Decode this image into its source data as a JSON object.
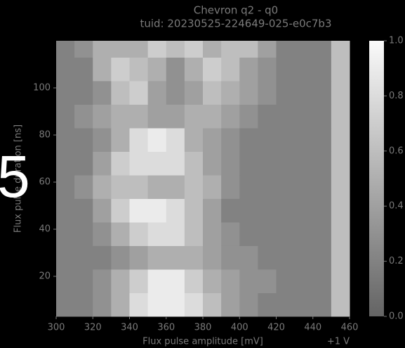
{
  "chart_data": {
    "type": "heatmap",
    "title": "Chevron q2 - q0",
    "subtitle": "tuid: 20230525-224649-025-e0c7b3",
    "x_label": "Flux pulse amplitude [mV]",
    "y_label": "Flux pulse duration [ns]",
    "annotation": "+1 V",
    "overlay_text": "5",
    "xlim": [
      300,
      460
    ],
    "ylim": [
      3,
      120
    ],
    "xticks": [
      300,
      320,
      340,
      360,
      380,
      400,
      420,
      440,
      460
    ],
    "yticks": [
      20,
      40,
      60,
      80,
      100
    ],
    "xbins": [
      300,
      310,
      320,
      330,
      340,
      350,
      360,
      370,
      380,
      390,
      400,
      410,
      420,
      430,
      440,
      450,
      460
    ],
    "ybins": [
      3,
      13,
      23,
      33,
      43,
      53,
      63,
      73,
      83,
      93,
      103,
      113,
      120
    ],
    "z": [
      [
        0.2,
        0.2,
        0.3,
        0.5,
        0.8,
        0.9,
        0.9,
        0.8,
        0.6,
        0.4,
        0.3,
        0.2,
        0.2,
        0.2,
        0.2,
        0.6
      ],
      [
        0.2,
        0.2,
        0.3,
        0.5,
        0.7,
        0.9,
        0.9,
        0.7,
        0.5,
        0.4,
        0.3,
        0.3,
        0.2,
        0.2,
        0.2,
        0.6
      ],
      [
        0.2,
        0.2,
        0.2,
        0.3,
        0.4,
        0.5,
        0.5,
        0.5,
        0.4,
        0.3,
        0.3,
        0.2,
        0.2,
        0.2,
        0.2,
        0.6
      ],
      [
        0.2,
        0.2,
        0.3,
        0.5,
        0.7,
        0.8,
        0.8,
        0.6,
        0.4,
        0.3,
        0.2,
        0.2,
        0.2,
        0.2,
        0.2,
        0.6
      ],
      [
        0.2,
        0.2,
        0.4,
        0.7,
        0.9,
        0.9,
        0.8,
        0.6,
        0.4,
        0.2,
        0.2,
        0.2,
        0.2,
        0.2,
        0.2,
        0.6
      ],
      [
        0.2,
        0.3,
        0.5,
        0.6,
        0.6,
        0.5,
        0.5,
        0.6,
        0.5,
        0.3,
        0.2,
        0.2,
        0.2,
        0.2,
        0.2,
        0.6
      ],
      [
        0.2,
        0.2,
        0.4,
        0.7,
        0.8,
        0.8,
        0.8,
        0.6,
        0.4,
        0.3,
        0.2,
        0.2,
        0.2,
        0.2,
        0.2,
        0.6
      ],
      [
        0.2,
        0.2,
        0.3,
        0.5,
        0.8,
        0.9,
        0.8,
        0.5,
        0.4,
        0.3,
        0.2,
        0.2,
        0.2,
        0.2,
        0.2,
        0.6
      ],
      [
        0.2,
        0.3,
        0.4,
        0.5,
        0.5,
        0.4,
        0.4,
        0.5,
        0.5,
        0.4,
        0.3,
        0.2,
        0.2,
        0.2,
        0.2,
        0.6
      ],
      [
        0.2,
        0.2,
        0.3,
        0.6,
        0.7,
        0.4,
        0.3,
        0.4,
        0.6,
        0.5,
        0.4,
        0.3,
        0.2,
        0.2,
        0.2,
        0.6
      ],
      [
        0.2,
        0.2,
        0.5,
        0.7,
        0.6,
        0.5,
        0.3,
        0.5,
        0.7,
        0.6,
        0.4,
        0.3,
        0.2,
        0.2,
        0.2,
        0.6
      ],
      [
        0.2,
        0.3,
        0.5,
        0.5,
        0.5,
        0.7,
        0.6,
        0.7,
        0.5,
        0.6,
        0.6,
        0.4,
        0.2,
        0.2,
        0.2,
        0.6
      ]
    ],
    "clim": [
      0,
      1
    ],
    "cticks": [
      {
        "value": 0,
        "label": "0.0"
      },
      0.2,
      0.4,
      0.6,
      0.8,
      {
        "value": 1,
        "label": "1.0"
      }
    ],
    "colormap": [
      "#646464",
      "#fafafa"
    ]
  }
}
